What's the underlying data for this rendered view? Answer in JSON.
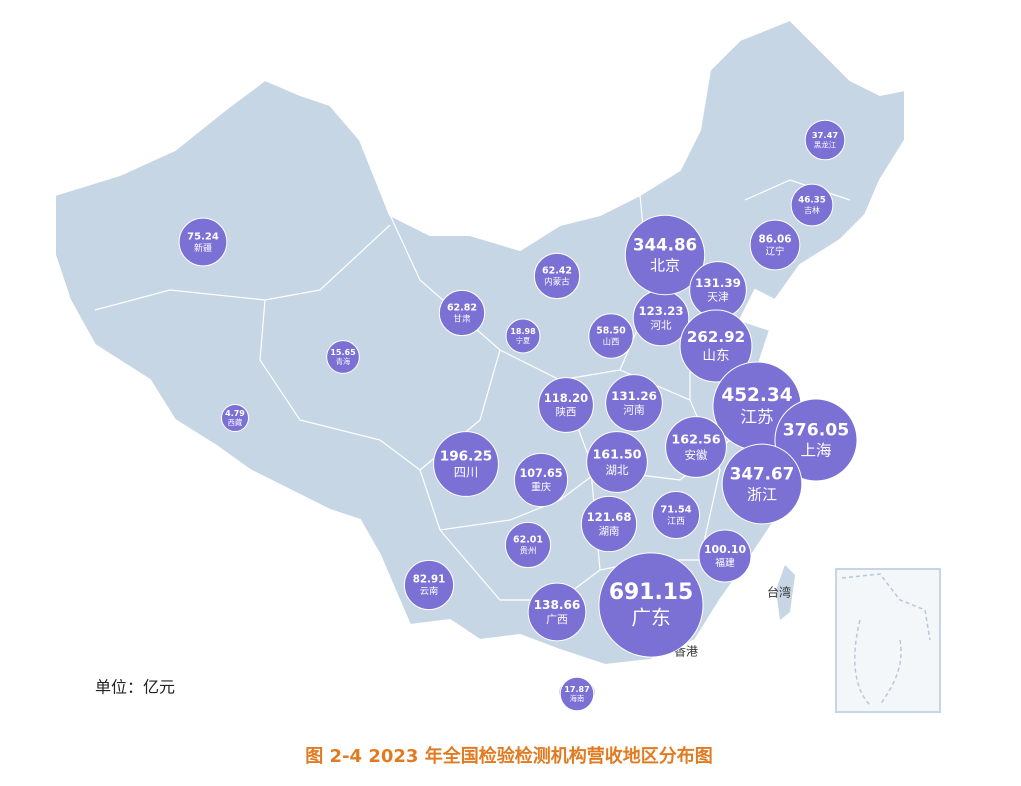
{
  "chart_data": {
    "type": "bubble-map",
    "title": "图 2-4    2023 年全国检验检测机构营收地区分布图",
    "unit_note": "单位：亿元",
    "place_labels": [
      "台湾",
      "香港"
    ],
    "color": "#7b70d4",
    "categories": [
      "新疆",
      "青海",
      "西藏",
      "甘肃",
      "内蒙古",
      "宁夏",
      "山西",
      "陕西",
      "四川",
      "重庆",
      "贵州",
      "云南",
      "广西",
      "海南",
      "广东",
      "湖南",
      "湖北",
      "河南",
      "河北",
      "北京",
      "天津",
      "山东",
      "江苏",
      "上海",
      "浙江",
      "安徽",
      "江西",
      "福建",
      "辽宁",
      "吉林",
      "黑龙江"
    ],
    "values": [
      75.24,
      15.65,
      4.79,
      62.82,
      62.42,
      18.98,
      58.5,
      118.2,
      196.25,
      107.65,
      62.01,
      82.91,
      138.66,
      17.87,
      691.15,
      121.68,
      161.5,
      131.26,
      123.23,
      344.86,
      131.39,
      262.92,
      452.34,
      376.05,
      347.67,
      162.56,
      71.54,
      100.1,
      86.06,
      46.35,
      37.47
    ],
    "value_labels": [
      "75.24",
      "15.65",
      "4.79",
      "62.82",
      "62.42",
      "18.98",
      "58.50",
      "118.20",
      "196.25",
      "107.65",
      "62.01",
      "82.91",
      "138.66",
      "17.87",
      "691.15",
      "121.68",
      "161.50",
      "131.26",
      "123.23",
      "344.86",
      "131.39",
      "262.92",
      "452.34",
      "376.05",
      "347.67",
      "162.56",
      "71.54",
      "100.10",
      "86.06",
      "46.35",
      "37.47"
    ]
  }
}
